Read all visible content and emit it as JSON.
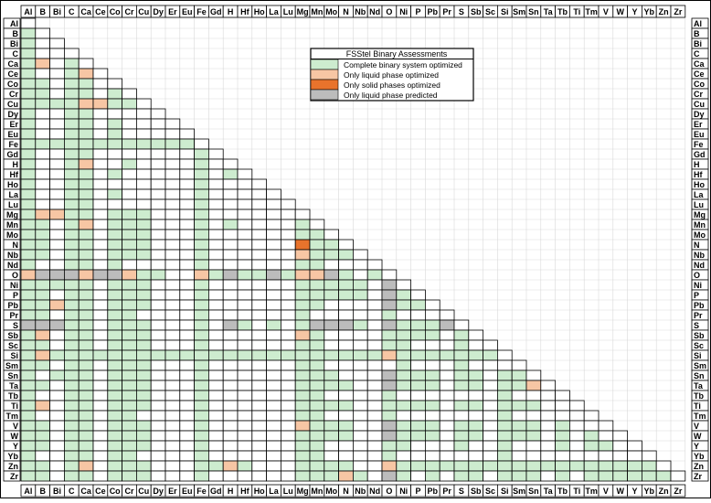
{
  "chart_data": {
    "type": "heatmap",
    "title": "",
    "elements": [
      "Al",
      "B",
      "Bi",
      "C",
      "Ca",
      "Ce",
      "Co",
      "Cr",
      "Cu",
      "Dy",
      "Er",
      "Eu",
      "Fe",
      "Gd",
      "H",
      "Hf",
      "Ho",
      "La",
      "Lu",
      "Mg",
      "Mn",
      "Mo",
      "N",
      "Nb",
      "Nd",
      "O",
      "Ni",
      "P",
      "Pb",
      "Pr",
      "S",
      "Sb",
      "Sc",
      "Si",
      "Sm",
      "Sn",
      "Ta",
      "Tb",
      "Ti",
      "Tm",
      "V",
      "W",
      "Y",
      "Yb",
      "Zn",
      "Zr"
    ],
    "legend": {
      "title": "FSStel Binary Assessments",
      "items": [
        {
          "key": "G",
          "label": "Complete binary system optimized",
          "color": "#cdeccf"
        },
        {
          "key": "L",
          "label": "Only liquid phase optimized",
          "color": "#f7c6a4"
        },
        {
          "key": "S",
          "label": "Only solid phases optimized",
          "color": "#e8732c"
        },
        {
          "key": "P",
          "label": "Only liquid phase predicted",
          "color": "#bcbcbc"
        }
      ]
    },
    "cell_codes": {
      "W": "not assessed",
      "G": "Complete binary system optimized",
      "L": "Only liquid phase optimized",
      "S": "Only solid phases optimized",
      "P": "Only liquid phase predicted"
    },
    "rows": [
      "",
      "G",
      "GW",
      "GWW",
      "GLWG",
      "GWWGL",
      "GGWGGW",
      "GGWGGWG",
      "GGGGLLGG",
      "GWWGGWWWW",
      "GWWGGWGWWW",
      "GWWGGWGWWWW",
      "GGGGGGGGGGGG",
      "GWWGGWWWWWWWG",
      "GWWGLWWGWWWWGW",
      "GWWGGWGWWWWWGWG",
      "GWWGGWWWWWWWGWWW",
      "GWWGGWGWWWWWGWWWW",
      "GWWGGWWWWWWWGWWWWW",
      "GLLGGWGGGWWWGWWWWWW",
      "GGWGLWGGGWWWGWGWWWWG",
      "GGWGGWGGGWWWGWWWWWWGG",
      "GGWGGWGGGWWWGWWWWWWSGG",
      "GGWGGWGGGWWWGWWWWWWLGGG",
      "GWWGGWGWWWWWGWWWWWWGGWWW",
      "LPPPLPPLGGWWLGPGGPGLLPGWG",
      "GGGGGWGGGWWWGWWWWWWGGGGGWP",
      "GGWGGWGGGWWWGWWWWWWGGGGGWPG",
      "GGLGGWGGGWWWGWWWWWWGGWWWWPGG",
      "GGWGGWGGWWWWGWWWWWWGWWWWWGWWW",
      "PPPGGWGGGWWWGWPGWGWGPPPGWPGGGP",
      "GLWGGWGGGWWWGWWWWWWLGWWWWGGGGWG",
      "GGWGGWGGGWWWGWWWWWWGGWWWWGGWWWGW",
      "GLGGGGGGGGGGGGGGGGGGGGGGGLGGGGGGG",
      "GGWGGWGGGWWWGWWWWWWGGWWWWWGWWWGWWW",
      "GWGGGWGGGWWWGWWWWWWGGGWWWPGGGWGGWGG",
      "GGWGGWGGGWWWGWWWWWWGGGGWWPGGGWGGWGGL",
      "GWWGGWGGGWWWGWWWWWWGGWWWWGWWWWWWWGWWW",
      "GLWGGWGGGWWWGWWWWWWGGGGWWGGGGWGGWGGGWW",
      "GWWGGWGGWWWWGWWWWWWGGWWWWGWWWWWWWGWWWWW",
      "GGWGGWGGGWWWGWWWWWWLGGGWWPGGGWGGWGGGWGWW",
      "GGWGGWGGGWWWGWWWWWWGGGGWWPGGGWGGWGGGWGWGW",
      "GGWGGWGGGWWWGWWWWWWGGWWWWGGWWWGWWGWWWGWGGW",
      "GWWGGWGGWWWWGWWWWWWGGWWWWGWWWWWWWGWWWWWWWWW",
      "GGWGLWGGGWWWGGLGWWWGGGGWWLGGGGGGGGGGGGGGGGGG",
      "GGWGGWGGGWWWGWWWWWWGGGLGWPGWGWGGWGGGWGWGGGGGG"
    ]
  }
}
